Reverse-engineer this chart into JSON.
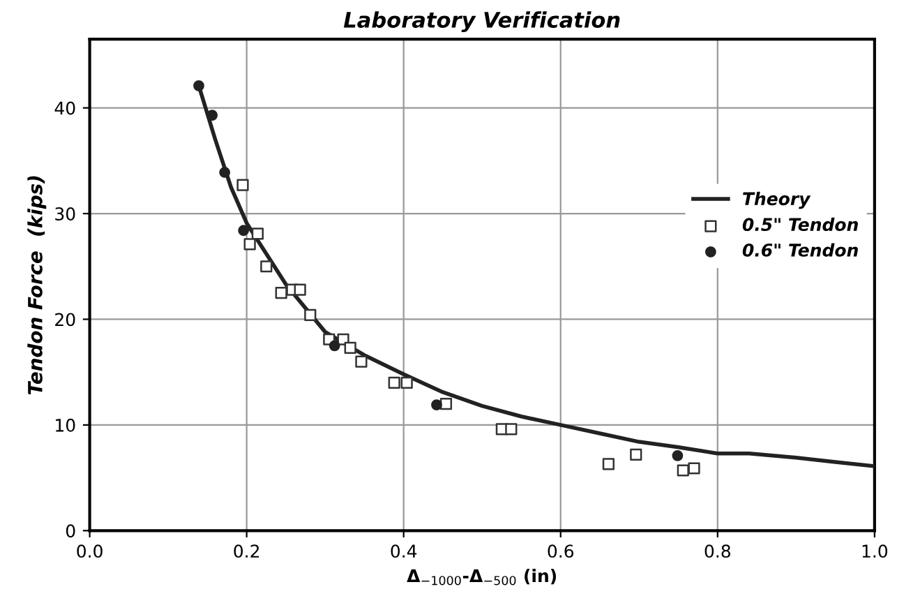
{
  "chart_data": {
    "type": "scatter",
    "title": "Laboratory Verification",
    "xlabel": "Δ$_{−1000}$-Δ$_{−500}$ (in)",
    "ylabel": "Tendon Force  (kips)",
    "xlim": [
      0,
      1.0
    ],
    "ylim": [
      0,
      46.5
    ],
    "xticks": [
      {
        "value": 0,
        "label": "0.0"
      },
      0.2,
      0.4,
      0.6,
      0.8,
      {
        "value": 1.0,
        "label": "1.0"
      }
    ],
    "yticks": [
      0,
      10,
      20,
      30,
      40
    ],
    "grid": true,
    "legend": "right",
    "series": [
      {
        "name": "Theory",
        "type": "line",
        "color": "#222222",
        "marker": "none",
        "line_style": "solid",
        "x": [
          0.139,
          0.16,
          0.18,
          0.2,
          0.25,
          0.3,
          0.35,
          0.4,
          0.45,
          0.5,
          0.55,
          0.6,
          0.65,
          0.7,
          0.75,
          0.8,
          0.84,
          0.9,
          0.95,
          1.0
        ],
        "values": [
          42.1,
          37.0,
          32.5,
          29.1,
          23.3,
          18.8,
          16.6,
          14.8,
          13.1,
          11.8,
          10.8,
          10.0,
          9.2,
          8.4,
          7.9,
          7.3,
          7.3,
          6.9,
          6.5,
          6.1
        ]
      },
      {
        "name": "0.5\" Tendon",
        "color": "#333333",
        "marker": "square",
        "x": [
          0.195,
          0.214,
          0.204,
          0.225,
          0.244,
          0.258,
          0.268,
          0.281,
          0.305,
          0.323,
          0.332,
          0.346,
          0.388,
          0.404,
          0.454,
          0.525,
          0.537,
          0.661,
          0.696,
          0.756,
          0.77
        ],
        "values": [
          32.7,
          28.1,
          27.1,
          25.0,
          22.5,
          22.8,
          22.8,
          20.4,
          18.1,
          18.1,
          17.3,
          16.0,
          14.0,
          14.0,
          12.0,
          9.6,
          9.6,
          6.3,
          7.2,
          5.7,
          5.9
        ]
      },
      {
        "name": "0.6\" Tendon",
        "color": "#222222",
        "marker": "circle",
        "x": [
          0.139,
          0.156,
          0.172,
          0.196,
          0.312,
          0.442,
          0.749
        ],
        "values": [
          42.1,
          39.3,
          33.9,
          28.4,
          17.5,
          11.9,
          7.1
        ]
      }
    ]
  }
}
